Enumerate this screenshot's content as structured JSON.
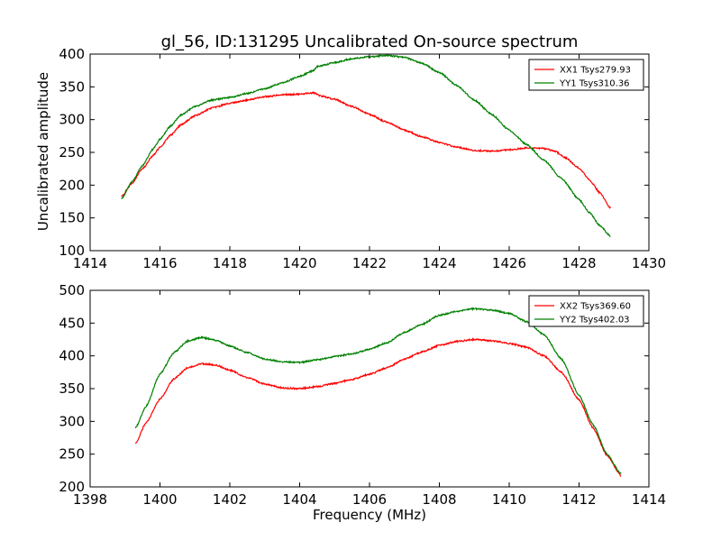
{
  "figure": {
    "title": "gl_56, ID:131295 Uncalibrated On-source spectrum",
    "ylabel": "Uncalibrated amplitude",
    "xlabel": "Frequency (MHz)"
  },
  "chart_data": [
    {
      "type": "line",
      "title": "gl_56, ID:131295 Uncalibrated On-source spectrum",
      "xlabel": "",
      "ylabel": "Uncalibrated amplitude",
      "xlim": [
        1414,
        1430
      ],
      "ylim": [
        100,
        400
      ],
      "xticks": [
        1414,
        1416,
        1418,
        1420,
        1422,
        1424,
        1426,
        1428,
        1430
      ],
      "yticks": [
        100,
        150,
        200,
        250,
        300,
        350,
        400
      ],
      "legend": "top-right",
      "grid": false,
      "series": [
        {
          "name": "XX1 Tsys279.93",
          "color": "#ff0000",
          "x": [
            1414.9,
            1415.2,
            1415.5,
            1415.8,
            1416.0,
            1416.3,
            1416.6,
            1417.0,
            1417.5,
            1418.0,
            1418.5,
            1419.0,
            1419.5,
            1420.0,
            1420.4,
            1420.6,
            1421.0,
            1421.5,
            1422.0,
            1422.5,
            1423.0,
            1423.5,
            1424.0,
            1424.5,
            1425.0,
            1425.5,
            1426.0,
            1426.5,
            1427.0,
            1427.3,
            1427.6,
            1428.0,
            1428.3,
            1428.6,
            1428.9
          ],
          "y": [
            183,
            203,
            225,
            245,
            258,
            276,
            292,
            306,
            318,
            325,
            330,
            335,
            338,
            339,
            341,
            336,
            331,
            320,
            308,
            296,
            284,
            274,
            265,
            258,
            253,
            252,
            254,
            257,
            256,
            252,
            242,
            226,
            208,
            188,
            165
          ]
        },
        {
          "name": "YY1 Tsys310.36",
          "color": "#008000",
          "x": [
            1414.9,
            1415.2,
            1415.5,
            1415.8,
            1416.0,
            1416.3,
            1416.6,
            1417.0,
            1417.5,
            1418.0,
            1418.5,
            1419.0,
            1419.5,
            1420.0,
            1420.4,
            1420.5,
            1421.0,
            1421.5,
            1422.0,
            1422.5,
            1423.0,
            1423.5,
            1424.0,
            1424.5,
            1425.0,
            1425.5,
            1426.0,
            1426.5,
            1427.0,
            1427.5,
            1428.0,
            1428.3,
            1428.6,
            1428.9
          ],
          "y": [
            179,
            205,
            230,
            255,
            270,
            290,
            307,
            320,
            330,
            334,
            340,
            347,
            356,
            366,
            375,
            381,
            387,
            393,
            396,
            398,
            395,
            386,
            372,
            352,
            330,
            308,
            284,
            262,
            238,
            210,
            178,
            158,
            138,
            122
          ]
        }
      ]
    },
    {
      "type": "line",
      "title": "",
      "xlabel": "Frequency (MHz)",
      "ylabel": "",
      "xlim": [
        1398,
        1414
      ],
      "ylim": [
        200,
        500
      ],
      "xticks": [
        1398,
        1400,
        1402,
        1404,
        1406,
        1408,
        1410,
        1412,
        1414
      ],
      "yticks": [
        200,
        250,
        300,
        350,
        400,
        450,
        500
      ],
      "legend": "top-right",
      "grid": false,
      "series": [
        {
          "name": "XX2 Tsys369.60",
          "color": "#ff0000",
          "x": [
            1399.3,
            1399.6,
            1400.0,
            1400.4,
            1400.8,
            1401.2,
            1401.6,
            1402.0,
            1402.5,
            1403.0,
            1403.5,
            1404.0,
            1404.5,
            1405.0,
            1405.5,
            1406.0,
            1406.5,
            1407.0,
            1407.5,
            1408.0,
            1408.5,
            1409.0,
            1409.5,
            1410.0,
            1410.5,
            1411.0,
            1411.5,
            1412.0,
            1412.4,
            1412.8,
            1413.2
          ],
          "y": [
            266,
            298,
            334,
            365,
            382,
            388,
            386,
            378,
            367,
            357,
            351,
            350,
            353,
            358,
            364,
            372,
            382,
            395,
            406,
            416,
            422,
            425,
            423,
            419,
            413,
            400,
            375,
            333,
            290,
            248,
            217
          ]
        },
        {
          "name": "YY2 Tsys402.03",
          "color": "#008000",
          "x": [
            1399.3,
            1399.6,
            1400.0,
            1400.4,
            1400.8,
            1401.2,
            1401.6,
            1402.0,
            1402.5,
            1403.0,
            1403.5,
            1404.0,
            1404.5,
            1405.0,
            1405.5,
            1406.0,
            1406.5,
            1407.0,
            1407.5,
            1408.0,
            1408.5,
            1409.0,
            1409.5,
            1410.0,
            1410.5,
            1411.0,
            1411.5,
            1412.0,
            1412.4,
            1412.8,
            1413.2
          ],
          "y": [
            290,
            323,
            372,
            405,
            423,
            428,
            424,
            415,
            405,
            395,
            391,
            390,
            394,
            399,
            403,
            410,
            420,
            436,
            448,
            462,
            468,
            472,
            470,
            465,
            452,
            432,
            395,
            340,
            295,
            250,
            220
          ]
        }
      ]
    }
  ]
}
